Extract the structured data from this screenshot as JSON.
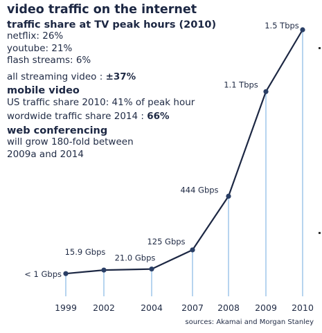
{
  "notes": {
    "title": "video traffic on the internet",
    "section1_heading": "traffic share at TV peak hours (2010)",
    "netflix": "netflix:  26%",
    "youtube": "youtube: 21%",
    "flash": "flash streams: 6%",
    "all_streaming_prefix": "all streaming video : ",
    "all_streaming_value": "±37%",
    "section2_heading": "mobile video",
    "us_share": "US traffic share 2010: 41% of peak hour",
    "worldwide_prefix": "wordwide traffic share 2014 : ",
    "worldwide_value": "66%",
    "section3_heading": "web conferencing",
    "conf_line1": "will grow 180-fold between",
    "conf_line2": "2009a and 2014"
  },
  "source": "sources: Akamai and Morgan Stanley",
  "chart_data": {
    "type": "line",
    "categories": [
      "1999",
      "2002",
      "2004",
      "2007",
      "2008",
      "2009",
      "2010"
    ],
    "values_gbps": [
      1,
      15.9,
      21.0,
      125,
      444,
      1100,
      1500
    ],
    "point_labels": [
      "< 1 Gbps",
      "15.9 Gbps",
      "21.0 Gbps",
      "125 Gbps",
      "444 Gbps",
      "1.1 Tbps",
      "1.5 Tbps"
    ],
    "ylim": [
      0,
      1500
    ],
    "grid": false,
    "colors": {
      "line": "#1c2743",
      "marker": "#2a3f66",
      "drop_line": "#8fbde6",
      "label": "#1f2a44"
    }
  }
}
